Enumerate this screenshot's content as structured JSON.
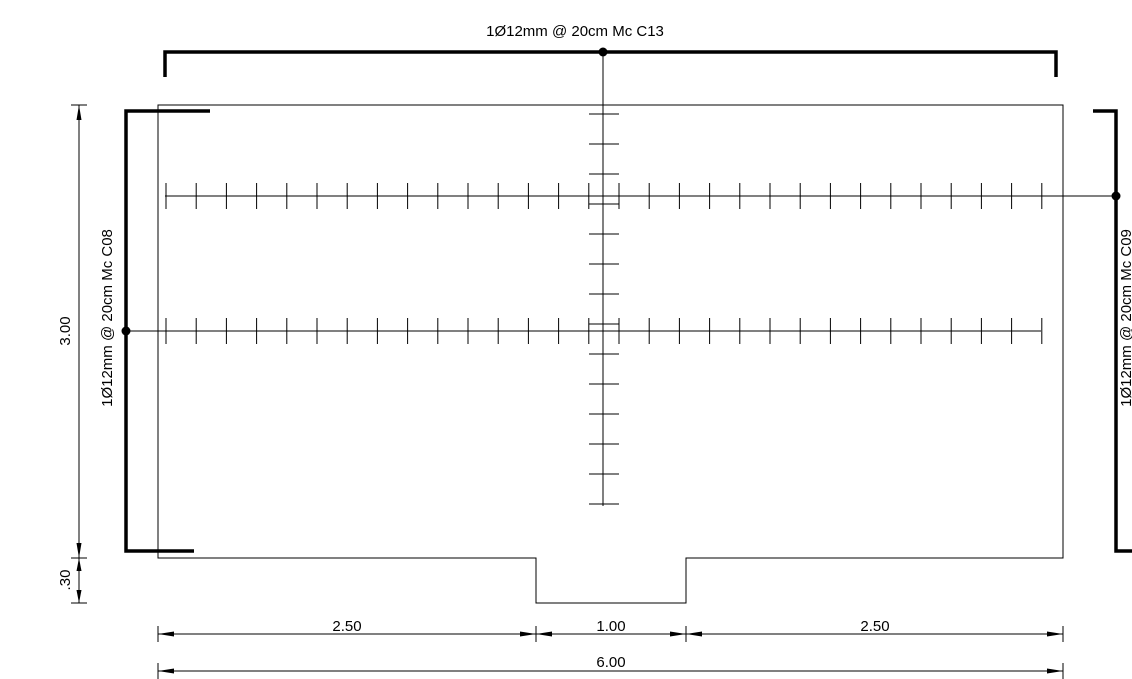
{
  "annotations": {
    "top_rebar": "1Ø12mm @ 20cm Mc C13",
    "left_rebar": "1Ø12mm @ 20cm Mc C08",
    "right_rebar": "1Ø12mm @ 20cm Mc C09"
  },
  "dimensions": {
    "height_main": "3.00",
    "height_step": ".30",
    "bottom_left": "2.50",
    "bottom_center": "1.00",
    "bottom_right": "2.50",
    "bottom_total": "6.00"
  }
}
